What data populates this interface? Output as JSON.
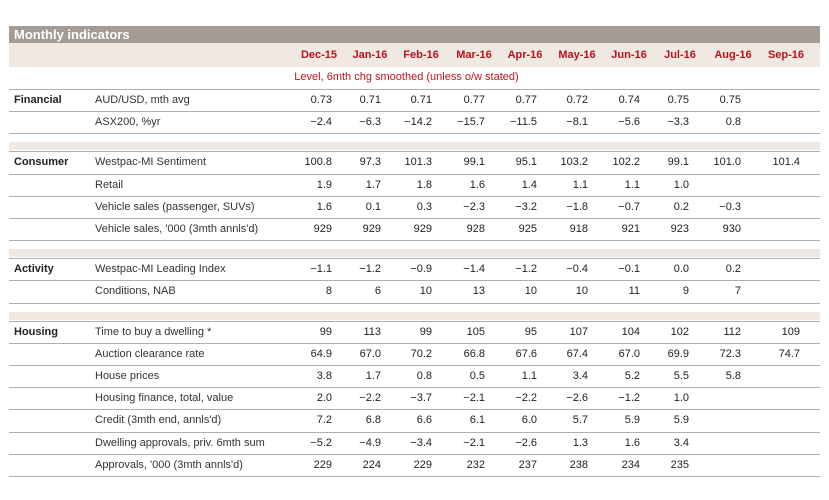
{
  "title": "Monthly indicators",
  "subtitle": "Level, 6mth chg smoothed (unless o/w stated)",
  "months": [
    "Dec-15",
    "Jan-16",
    "Feb-16",
    "Mar-16",
    "Apr-16",
    "May-16",
    "Jun-16",
    "Jul-16",
    "Aug-16",
    "Sep-16"
  ],
  "sections": [
    {
      "name": "Financial",
      "rows": [
        {
          "label": "AUD/USD, mth avg",
          "values": [
            "0.73",
            "0.71",
            "0.71",
            "0.77",
            "0.77",
            "0.72",
            "0.74",
            "0.75",
            "0.75",
            ""
          ]
        },
        {
          "label": "ASX200, %yr",
          "values": [
            "-2.4",
            "-6.3",
            "-14.2",
            "-15.7",
            "-11.5",
            "-8.1",
            "-5.6",
            "-3.3",
            "0.8",
            ""
          ]
        }
      ]
    },
    {
      "name": "Consumer",
      "rows": [
        {
          "label": "Westpac-MI Sentiment",
          "values": [
            "100.8",
            "97.3",
            "101.3",
            "99.1",
            "95.1",
            "103.2",
            "102.2",
            "99.1",
            "101.0",
            "101.4"
          ]
        },
        {
          "label": "Retail",
          "values": [
            "1.9",
            "1.7",
            "1.8",
            "1.6",
            "1.4",
            "1.1",
            "1.1",
            "1.0",
            "",
            ""
          ]
        },
        {
          "label": "Vehicle sales (passenger, SUVs)",
          "values": [
            "1.6",
            "0.1",
            "0.3",
            "-2.3",
            "-3.2",
            "-1.8",
            "-0.7",
            "0.2",
            "-0.3",
            ""
          ]
        },
        {
          "label": "Vehicle sales, '000 (3mth annls'd)",
          "values": [
            "929",
            "929",
            "929",
            "928",
            "925",
            "918",
            "921",
            "923",
            "930",
            ""
          ]
        }
      ]
    },
    {
      "name": "Activity",
      "rows": [
        {
          "label": "Westpac-MI Leading Index",
          "values": [
            "-1.1",
            "-1.2",
            "-0.9",
            "-1.4",
            "-1.2",
            "-0.4",
            "-0.1",
            "0.0",
            "0.2",
            ""
          ]
        },
        {
          "label": "Conditions, NAB",
          "values": [
            "8",
            "6",
            "10",
            "13",
            "10",
            "10",
            "11",
            "9",
            "7",
            ""
          ]
        }
      ]
    },
    {
      "name": "Housing",
      "rows": [
        {
          "label": "Time to buy a dwelling *",
          "values": [
            "99",
            "113",
            "99",
            "105",
            "95",
            "107",
            "104",
            "102",
            "112",
            "109"
          ]
        },
        {
          "label": "Auction clearance rate",
          "values": [
            "64.9",
            "67.0",
            "70.2",
            "66.8",
            "67.6",
            "67.4",
            "67.0",
            "69.9",
            "72.3",
            "74.7"
          ]
        },
        {
          "label": "House prices",
          "values": [
            "3.8",
            "1.7",
            "0.8",
            "0.5",
            "1.1",
            "3.4",
            "5.2",
            "5.5",
            "5.8",
            ""
          ]
        },
        {
          "label": "Housing finance, total, value",
          "values": [
            "2.0",
            "-2.2",
            "-3.7",
            "-2.1",
            "-2.2",
            "-2.6",
            "-1.2",
            "1.0",
            "",
            ""
          ]
        },
        {
          "label": "Credit  (3mth end, annls'd)",
          "values": [
            "7.2",
            "6.8",
            "6.6",
            "6.1",
            "6.0",
            "5.7",
            "5.9",
            "5.9",
            "",
            ""
          ]
        },
        {
          "label": "Dwelling approvals, priv. 6mth sum",
          "values": [
            "-5.2",
            "-4.9",
            "-3.4",
            "-2.1",
            "-2.6",
            "1.3",
            "1.6",
            "3.4",
            "",
            ""
          ]
        },
        {
          "label": "Approvals, '000 (3mth annls'd)",
          "values": [
            "229",
            "224",
            "229",
            "232",
            "237",
            "238",
            "234",
            "235",
            "",
            ""
          ]
        }
      ]
    }
  ]
}
